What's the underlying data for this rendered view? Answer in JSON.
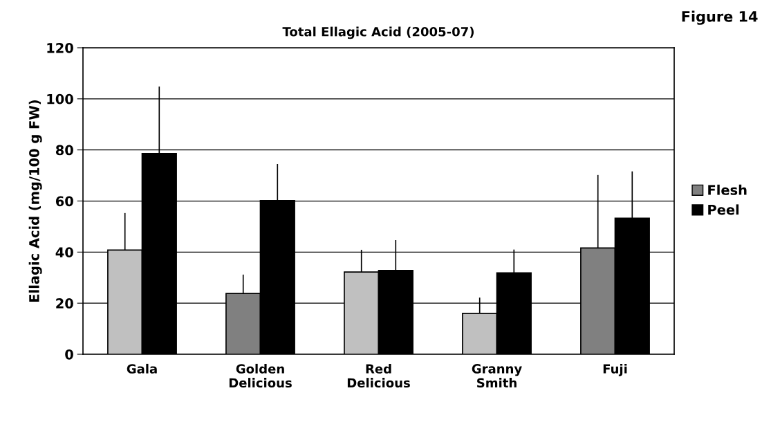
{
  "chart_data": {
    "type": "bar",
    "title": "Total Ellagic Acid (2005-07)",
    "ylabel": "Ellagic Acid (mg/100 g FW)",
    "annotations": [
      "Figure 14"
    ],
    "categories": [
      "Gala",
      "Golden\nDelicious",
      "Red\nDelicious",
      "Granny\nSmith",
      "Fuji"
    ],
    "series": [
      {
        "name": "Flesh",
        "color": "#808080",
        "colors": [
          "#c0c0c0",
          "#808080",
          "#c0c0c0",
          "#c0c0c0",
          "#808080"
        ],
        "values": [
          40.8,
          23.8,
          32.2,
          16.0,
          41.6
        ],
        "errors": [
          [
            40.8,
            55.3
          ],
          [
            23.8,
            31.2
          ],
          [
            32.2,
            40.9
          ],
          [
            16.0,
            22.2
          ],
          [
            41.6,
            70.2
          ]
        ]
      },
      {
        "name": "Peel",
        "color": "#000000",
        "values": [
          78.6,
          60.2,
          32.8,
          31.9,
          53.3
        ],
        "errors": [
          [
            78.6,
            104.8
          ],
          [
            60.2,
            74.5
          ],
          [
            32.8,
            44.7
          ],
          [
            31.9,
            41.0
          ],
          [
            53.3,
            71.6
          ]
        ]
      }
    ],
    "ylim": [
      0,
      120
    ],
    "yticks": [
      0,
      20,
      40,
      60,
      80,
      100,
      120
    ],
    "grid": "y",
    "legend": "right"
  }
}
